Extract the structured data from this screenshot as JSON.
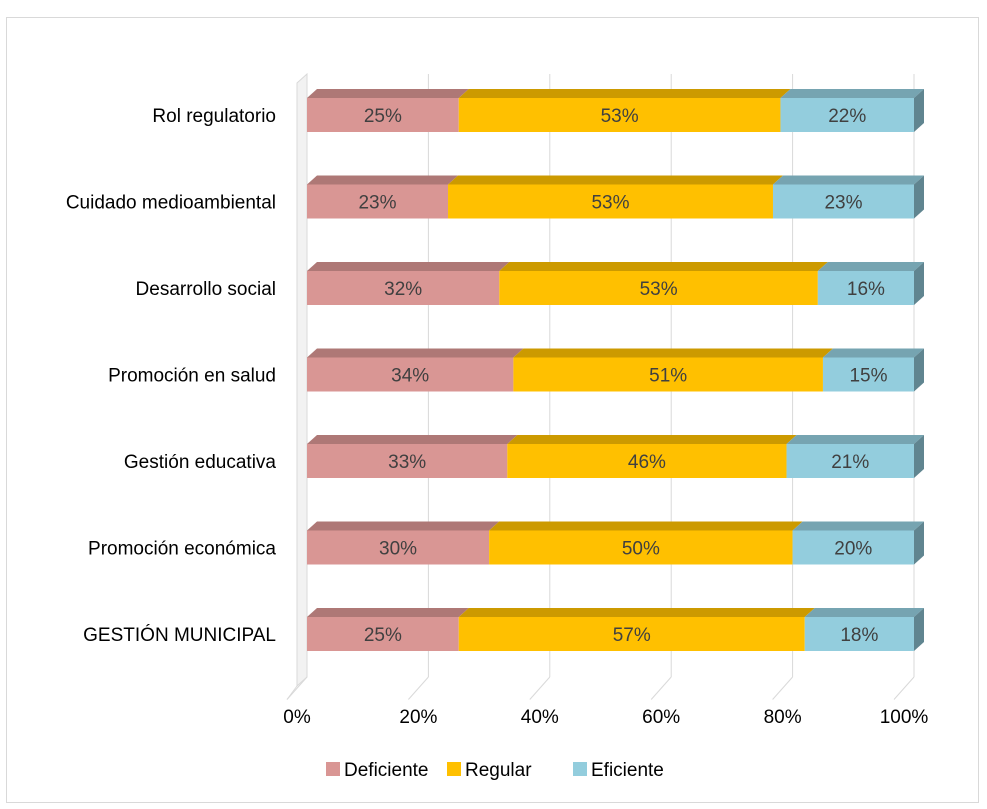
{
  "chart_data": {
    "type": "bar",
    "orientation": "horizontal",
    "stacked": true,
    "percent_stacked": true,
    "style": "3d",
    "categories": [
      "Rol regulatorio",
      "Cuidado medioambiental",
      "Desarrollo social",
      "Promoción en salud",
      "Gestión educativa",
      "Promoción económica",
      "GESTIÓN MUNICIPAL"
    ],
    "series": [
      {
        "name": "Deficiente",
        "color": "#d99694",
        "values": [
          25,
          23,
          32,
          34,
          33,
          30,
          25
        ],
        "labels": [
          "25%",
          "23%",
          "32%",
          "34%",
          "33%",
          "30%",
          "25%"
        ]
      },
      {
        "name": "Regular",
        "color": "#ffc000",
        "values": [
          53,
          53,
          53,
          51,
          46,
          50,
          57
        ],
        "labels": [
          "53%",
          "53%",
          "53%",
          "51%",
          "46%",
          "50%",
          "57%"
        ]
      },
      {
        "name": "Eficiente",
        "color": "#93cddd",
        "values": [
          22,
          23,
          16,
          15,
          21,
          20,
          18
        ],
        "labels": [
          "22%",
          "23%",
          "16%",
          "15%",
          "21%",
          "20%",
          "18%"
        ]
      }
    ],
    "xlim": [
      0,
      100
    ],
    "x_ticks": [
      "0%",
      "20%",
      "40%",
      "60%",
      "80%",
      "100%"
    ],
    "grid": true,
    "legend_position": "bottom"
  }
}
